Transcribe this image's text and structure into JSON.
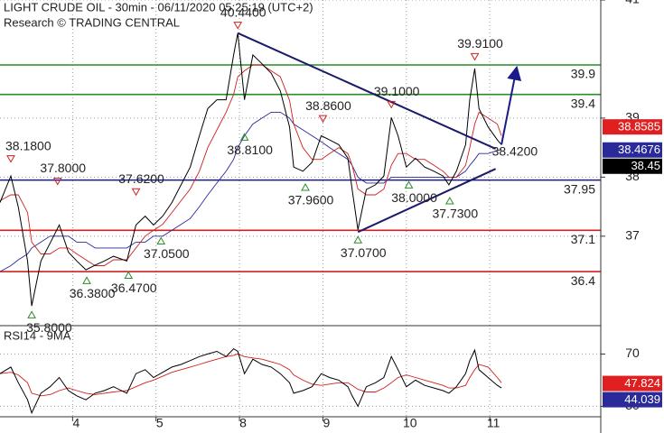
{
  "chart_data": [
    {
      "type": "line",
      "title": "LIGHT CRUDE OIL - 30min - 06/11/2020 05:25:19 (UTC+2)",
      "subtitle": "Research © TRADING CENTRAL",
      "xlim": [
        0.13,
        7.33
      ],
      "ylim": [
        35.5,
        41.0
      ],
      "yticks": [
        37,
        38,
        39,
        41
      ],
      "grid": true,
      "x": [
        0.13,
        0.26,
        0.35,
        0.46,
        0.51,
        0.62,
        0.73,
        0.84,
        0.95,
        1.05,
        1.16,
        1.27,
        1.38,
        1.49,
        1.65,
        1.76,
        1.87,
        1.97,
        2.08,
        2.19,
        2.3,
        2.41,
        2.52,
        2.62,
        2.73,
        2.84,
        2.93,
        2.98,
        3.06,
        3.16,
        3.27,
        3.38,
        3.49,
        3.6,
        3.65,
        3.76,
        3.87,
        3.98,
        4.08,
        4.19,
        4.3,
        4.35,
        4.42,
        4.52,
        4.63,
        4.73,
        4.82,
        4.9,
        5.0,
        5.11,
        5.22,
        5.33,
        5.44,
        5.51,
        5.6,
        5.71,
        5.76,
        5.82,
        5.87,
        5.98,
        6.09,
        6.14
      ],
      "series": [
        {
          "color": "#000000",
          "values": [
            37.57,
            38.02,
            37.49,
            36.58,
            35.82,
            36.58,
            36.88,
            37.19,
            36.73,
            36.58,
            36.43,
            36.51,
            36.58,
            36.66,
            36.58,
            37.19,
            37.34,
            37.19,
            37.34,
            37.57,
            37.87,
            38.17,
            38.7,
            39.16,
            39.31,
            39.31,
            40.07,
            40.44,
            39.31,
            40.07,
            39.92,
            39.76,
            39.46,
            38.85,
            38.17,
            38.1,
            38.25,
            38.7,
            38.63,
            38.55,
            38.32,
            37.79,
            37.11,
            37.79,
            37.87,
            38.02,
            39.01,
            38.7,
            38.17,
            38.32,
            38.17,
            38.1,
            38.02,
            37.87,
            38.1,
            38.55,
            39.31,
            39.84,
            39.16,
            38.85,
            38.63,
            38.55
          ]
        },
        {
          "color": "#d02020",
          "values": [
            37.6,
            37.7,
            37.7,
            37.4,
            36.9,
            36.7,
            36.7,
            36.8,
            36.8,
            36.7,
            36.6,
            36.5,
            36.5,
            36.6,
            36.6,
            36.8,
            37.0,
            37.1,
            37.2,
            37.4,
            37.6,
            37.8,
            38.1,
            38.5,
            38.8,
            39.1,
            39.4,
            39.7,
            39.8,
            39.9,
            39.9,
            39.8,
            39.7,
            39.3,
            38.9,
            38.5,
            38.3,
            38.3,
            38.4,
            38.5,
            38.4,
            38.2,
            37.8,
            37.7,
            37.7,
            37.8,
            38.2,
            38.4,
            38.4,
            38.3,
            38.3,
            38.2,
            38.1,
            38.0,
            38.0,
            38.2,
            38.5,
            38.9,
            39.1,
            39.0,
            38.9,
            38.7
          ]
        },
        {
          "color": "#2a2a9a",
          "values": [
            36.4,
            36.5,
            36.6,
            36.7,
            36.8,
            36.9,
            37.0,
            37.0,
            37.0,
            36.9,
            36.9,
            36.8,
            36.8,
            36.8,
            36.8,
            36.9,
            36.9,
            37.0,
            37.0,
            37.1,
            37.2,
            37.3,
            37.5,
            37.7,
            37.9,
            38.1,
            38.3,
            38.5,
            38.7,
            38.9,
            39.0,
            39.1,
            39.1,
            39.0,
            38.9,
            38.8,
            38.7,
            38.6,
            38.5,
            38.4,
            38.3,
            38.2,
            38.0,
            37.9,
            37.9,
            37.9,
            38.0,
            38.0,
            38.0,
            38.0,
            38.0,
            38.0,
            38.0,
            38.0,
            38.0,
            38.1,
            38.2,
            38.3,
            38.4,
            38.4,
            38.45,
            38.47
          ]
        }
      ],
      "levels": [
        {
          "value": 39.9,
          "color": "#2a8c2a"
        },
        {
          "value": 39.4,
          "color": "#2a8c2a"
        },
        {
          "value": 37.95,
          "color": "#1a1a8a"
        },
        {
          "value": 37.1,
          "color": "#d02020"
        },
        {
          "value": 36.4,
          "color": "#d02020"
        }
      ],
      "annotations": [
        {
          "label": "40.4400",
          "x": 2.98,
          "y": 40.44,
          "kind": "high"
        },
        {
          "label": "39.9100",
          "x": 5.82,
          "y": 39.91,
          "kind": "high"
        },
        {
          "label": "39.1000",
          "x": 4.82,
          "y": 39.1,
          "kind": "high"
        },
        {
          "label": "38.8600",
          "x": 4.0,
          "y": 38.86,
          "kind": "high"
        },
        {
          "label": "38.1800",
          "x": 0.26,
          "y": 38.18,
          "kind": "high"
        },
        {
          "label": "37.8000",
          "x": 0.82,
          "y": 37.8,
          "kind": "high"
        },
        {
          "label": "37.6200",
          "x": 1.76,
          "y": 37.62,
          "kind": "high"
        },
        {
          "label": "38.8100",
          "x": 3.06,
          "y": 38.81,
          "kind": "low"
        },
        {
          "label": "37.9600",
          "x": 3.79,
          "y": 37.96,
          "kind": "low"
        },
        {
          "label": "37.0700",
          "x": 4.42,
          "y": 37.07,
          "kind": "low"
        },
        {
          "label": "38.0000",
          "x": 5.03,
          "y": 38.0,
          "kind": "low"
        },
        {
          "label": "37.7300",
          "x": 5.52,
          "y": 37.73,
          "kind": "low"
        },
        {
          "label": "37.0500",
          "x": 2.06,
          "y": 37.05,
          "kind": "low"
        },
        {
          "label": "36.3800",
          "x": 1.17,
          "y": 36.38,
          "kind": "low"
        },
        {
          "label": "36.4700",
          "x": 1.67,
          "y": 36.47,
          "kind": "low"
        },
        {
          "label": "35.8000",
          "x": 0.51,
          "y": 35.8,
          "kind": "low"
        },
        {
          "label": "38.4200",
          "x": 6.3,
          "y": 38.42,
          "kind": "text"
        }
      ],
      "trendlines": [
        {
          "color": "#1a1a6a",
          "x": [
            2.98,
            6.07
          ],
          "y": [
            40.44,
            38.48
          ]
        },
        {
          "color": "#1a1a6a",
          "x": [
            4.42,
            6.07
          ],
          "y": [
            37.07,
            38.14
          ]
        }
      ],
      "arrow": {
        "color": "#1a1a8a",
        "x": [
          6.14,
          6.32
        ],
        "y": [
          38.55,
          39.84
        ]
      },
      "price_tags": [
        {
          "value": 38.8585,
          "color": "#e02020"
        },
        {
          "value": 38.4676,
          "color": "#2a2a9a"
        },
        {
          "value": 38.45,
          "color": "#000000"
        }
      ]
    },
    {
      "type": "line",
      "title": "RSI14 - 9MA",
      "xlim": [
        0.13,
        7.33
      ],
      "ylim": [
        22,
        91
      ],
      "yticks": [
        30,
        70
      ],
      "grid": true,
      "xticks": [
        {
          "value": 1,
          "label": "4"
        },
        {
          "value": 2,
          "label": "5"
        },
        {
          "value": 3,
          "label": "8"
        },
        {
          "value": 4,
          "label": "9"
        },
        {
          "value": 5,
          "label": "10"
        },
        {
          "value": 6,
          "label": "11"
        }
      ],
      "x": [
        0.13,
        0.26,
        0.35,
        0.46,
        0.51,
        0.62,
        0.73,
        0.84,
        0.95,
        1.05,
        1.16,
        1.27,
        1.38,
        1.49,
        1.65,
        1.76,
        1.87,
        1.97,
        2.08,
        2.19,
        2.3,
        2.41,
        2.52,
        2.62,
        2.73,
        2.84,
        2.93,
        2.98,
        3.06,
        3.16,
        3.27,
        3.38,
        3.49,
        3.6,
        3.65,
        3.76,
        3.87,
        3.98,
        4.08,
        4.19,
        4.3,
        4.35,
        4.42,
        4.52,
        4.63,
        4.73,
        4.82,
        4.9,
        5.0,
        5.11,
        5.22,
        5.33,
        5.44,
        5.51,
        5.6,
        5.71,
        5.76,
        5.82,
        5.87,
        5.98,
        6.09,
        6.14
      ],
      "series": [
        {
          "color": "#000000",
          "values": [
            55,
            60,
            48,
            35,
            25,
            40,
            45,
            52,
            42,
            38,
            35,
            40,
            42,
            45,
            40,
            55,
            58,
            52,
            56,
            60,
            62,
            65,
            68,
            70,
            72,
            68,
            74,
            72,
            55,
            66,
            62,
            60,
            55,
            48,
            40,
            42,
            45,
            55,
            52,
            50,
            45,
            38,
            30,
            45,
            48,
            52,
            68,
            58,
            45,
            50,
            46,
            44,
            42,
            40,
            45,
            55,
            65,
            73,
            58,
            52,
            46,
            44
          ]
        },
        {
          "color": "#d02020",
          "values": [
            55,
            56,
            54,
            48,
            40,
            38,
            39,
            42,
            44,
            42,
            40,
            39,
            40,
            41,
            42,
            45,
            48,
            50,
            53,
            56,
            58,
            60,
            62,
            64,
            66,
            68,
            69,
            70,
            68,
            67,
            66,
            64,
            62,
            58,
            54,
            50,
            47,
            46,
            47,
            48,
            48,
            46,
            43,
            41,
            41,
            44,
            48,
            52,
            54,
            52,
            50,
            48,
            46,
            44,
            44,
            46,
            52,
            58,
            62,
            60,
            52,
            48
          ]
        }
      ],
      "price_tags": [
        {
          "value": 47.824,
          "color": "#e02020"
        },
        {
          "value": 44.039,
          "color": "#2a2a9a"
        }
      ]
    }
  ]
}
